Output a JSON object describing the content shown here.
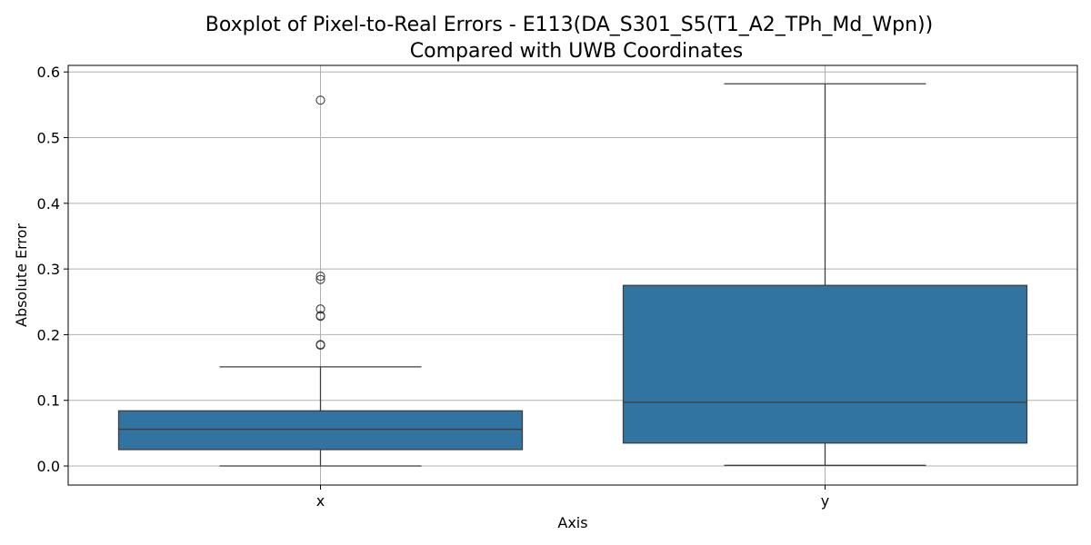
{
  "chart_data": {
    "type": "boxplot",
    "title_line1": "Boxplot of Pixel-to-Real Errors - E113(DA_S301_S5(T1_A2_TPh_Md_Wpn))",
    "title_line2": "Compared with UWB Coordinates",
    "xlabel": "Axis",
    "ylabel": "Absolute Error",
    "ylim": [
      -0.029,
      0.61
    ],
    "yticks": [
      0.0,
      0.1,
      0.2,
      0.3,
      0.4,
      0.5,
      0.6
    ],
    "ytick_labels": [
      "0.0",
      "0.1",
      "0.2",
      "0.3",
      "0.4",
      "0.5",
      "0.6"
    ],
    "grid": true,
    "box_color": "#3274a1",
    "line_color": "#3f3f3f",
    "categories": [
      "x",
      "y"
    ],
    "boxes": [
      {
        "category": "x",
        "whisker_low": 0.0,
        "q1": 0.025,
        "median": 0.056,
        "q3": 0.084,
        "whisker_high": 0.151,
        "outliers": [
          0.557,
          0.289,
          0.284,
          0.239,
          0.229,
          0.228,
          0.185,
          0.184
        ]
      },
      {
        "category": "y",
        "whisker_low": 0.001,
        "q1": 0.035,
        "median": 0.097,
        "q3": 0.275,
        "whisker_high": 0.582,
        "outliers": []
      }
    ]
  }
}
